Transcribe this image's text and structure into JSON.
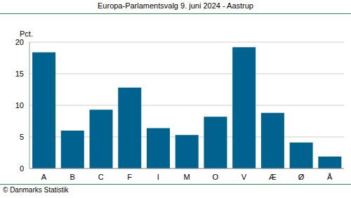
{
  "chart_data": {
    "type": "bar",
    "title": "Europa-Parlamentsvalg 9. juni 2024 - Aastrup",
    "y_label": "Pct.",
    "source": "© Danmarks Statistik",
    "categories": [
      "A",
      "B",
      "C",
      "F",
      "I",
      "M",
      "O",
      "V",
      "Æ",
      "Ø",
      "Å"
    ],
    "values": [
      18.4,
      6.0,
      9.3,
      12.8,
      6.4,
      5.3,
      8.2,
      19.2,
      8.8,
      4.1,
      1.9
    ],
    "color": "#00628f",
    "ylim": [
      0,
      20
    ],
    "yticks": [
      0,
      5,
      10,
      15,
      20
    ],
    "grid": true
  }
}
